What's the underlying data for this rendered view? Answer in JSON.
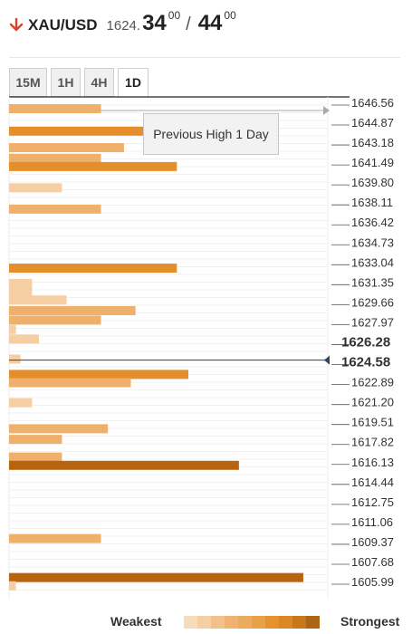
{
  "header": {
    "pair": "XAU/USD",
    "bid_small": "1624.",
    "bid_big": "34",
    "bid_sup": "00",
    "separator": "/",
    "ask_big": "44",
    "ask_sup": "00"
  },
  "tabs": [
    {
      "label": "15M",
      "active": false
    },
    {
      "label": "1H",
      "active": false
    },
    {
      "label": "4H",
      "active": false
    },
    {
      "label": "1D",
      "active": true
    }
  ],
  "tooltip": "Previous High 1 Day",
  "legend": {
    "weakest": "Weakest",
    "strongest": "Strongest"
  },
  "colors": {
    "bar_light": "#f5cfa3",
    "bar_medium": "#eeb06a",
    "bar_strong": "#e48f2c",
    "bar_strongest": "#b86310",
    "current_price_line": "#2d4666",
    "legend_scale": [
      "#f7dcbc",
      "#f5cfa3",
      "#f2c18b",
      "#efb26f",
      "#ecaa5e",
      "#e9a04a",
      "#e5922e",
      "#db8726",
      "#c8781a",
      "#ac6516"
    ]
  },
  "chart_data": {
    "type": "bar",
    "orientation": "horizontal",
    "current_price": "1626.28",
    "previous_price": "1624.58",
    "price_ticks": [
      "1646.56",
      "1644.87",
      "1643.18",
      "1641.49",
      "1639.80",
      "1638.11",
      "1636.42",
      "1634.73",
      "1633.04",
      "1631.35",
      "1629.66",
      "1627.97",
      "1626.28",
      "1624.58",
      "1622.89",
      "1621.20",
      "1619.51",
      "1617.82",
      "1616.13",
      "1614.44",
      "1612.75",
      "1611.06",
      "1609.37",
      "1607.68",
      "1605.99"
    ],
    "levels": [
      {
        "price": 1646.1,
        "strength": 4,
        "shade": "medium"
      },
      {
        "price": 1644.2,
        "strength": 7,
        "shade": "strong"
      },
      {
        "price": 1642.8,
        "strength": 5,
        "shade": "medium"
      },
      {
        "price": 1641.9,
        "strength": 4,
        "shade": "medium"
      },
      {
        "price": 1641.2,
        "strength": 7.3,
        "shade": "strong"
      },
      {
        "price": 1639.4,
        "strength": 2.3,
        "shade": "light"
      },
      {
        "price": 1637.6,
        "strength": 4,
        "shade": "medium"
      },
      {
        "price": 1632.6,
        "strength": 7.3,
        "shade": "strong"
      },
      {
        "price": 1631.3,
        "strength": 1,
        "shade": "light"
      },
      {
        "price": 1630.6,
        "strength": 1,
        "shade": "light"
      },
      {
        "price": 1629.9,
        "strength": 2.5,
        "shade": "light"
      },
      {
        "price": 1629.0,
        "strength": 5.5,
        "shade": "medium"
      },
      {
        "price": 1628.2,
        "strength": 4,
        "shade": "medium"
      },
      {
        "price": 1627.4,
        "strength": 0.3,
        "shade": "light"
      },
      {
        "price": 1626.6,
        "strength": 1.3,
        "shade": "light"
      },
      {
        "price": 1624.9,
        "strength": 0.5,
        "shade": "light"
      },
      {
        "price": 1623.6,
        "strength": 7.8,
        "shade": "strong"
      },
      {
        "price": 1622.9,
        "strength": 5.3,
        "shade": "medium"
      },
      {
        "price": 1621.2,
        "strength": 1,
        "shade": "light"
      },
      {
        "price": 1619.0,
        "strength": 4.3,
        "shade": "medium"
      },
      {
        "price": 1618.1,
        "strength": 2.3,
        "shade": "medium"
      },
      {
        "price": 1616.6,
        "strength": 2.3,
        "shade": "medium"
      },
      {
        "price": 1615.9,
        "strength": 10,
        "shade": "strongest"
      },
      {
        "price": 1609.7,
        "strength": 4,
        "shade": "medium"
      },
      {
        "price": 1606.4,
        "strength": 12.8,
        "shade": "strongest"
      },
      {
        "price": 1605.7,
        "strength": 0.3,
        "shade": "light"
      }
    ],
    "tooltip_level": 1646.1,
    "max_strength": 13
  }
}
